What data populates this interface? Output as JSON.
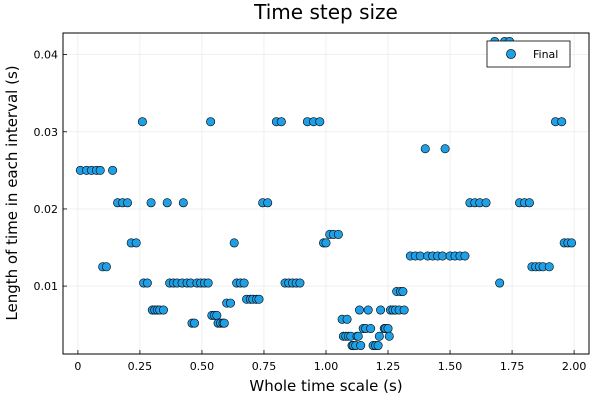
{
  "chart_data": {
    "type": "scatter",
    "title": "Time step size",
    "xlabel": "Whole time scale (s)",
    "ylabel": "Length of time in each interval (s)",
    "xlim": [
      -0.06,
      2.06
    ],
    "ylim": [
      0.0012,
      0.0428
    ],
    "x_ticks": [
      0,
      0.25,
      0.5,
      0.75,
      1.0,
      1.25,
      1.5,
      1.75,
      2.0
    ],
    "x_tick_labels": [
      "0",
      "0.25",
      "0.50",
      "0.75",
      "1.00",
      "1.25",
      "1.50",
      "1.75",
      "2.00"
    ],
    "y_ticks": [
      0.01,
      0.02,
      0.03,
      0.04
    ],
    "y_tick_labels": [
      "0.01",
      "0.02",
      "0.03",
      "0.04"
    ],
    "grid": true,
    "legend_position": "top-right",
    "marker_color": "#1f9fe6",
    "series": [
      {
        "name": "Final",
        "points": [
          [
            0.01,
            0.025
          ],
          [
            0.035,
            0.025
          ],
          [
            0.055,
            0.025
          ],
          [
            0.075,
            0.025
          ],
          [
            0.09,
            0.025
          ],
          [
            0.1,
            0.0125
          ],
          [
            0.115,
            0.0125
          ],
          [
            0.14,
            0.025
          ],
          [
            0.16,
            0.0208
          ],
          [
            0.18,
            0.0208
          ],
          [
            0.2,
            0.0208
          ],
          [
            0.215,
            0.0156
          ],
          [
            0.235,
            0.0156
          ],
          [
            0.26,
            0.0313
          ],
          [
            0.265,
            0.0104
          ],
          [
            0.28,
            0.0104
          ],
          [
            0.295,
            0.0208
          ],
          [
            0.3,
            0.0069
          ],
          [
            0.31,
            0.0069
          ],
          [
            0.32,
            0.0069
          ],
          [
            0.33,
            0.0069
          ],
          [
            0.345,
            0.0069
          ],
          [
            0.36,
            0.0208
          ],
          [
            0.37,
            0.0104
          ],
          [
            0.385,
            0.0104
          ],
          [
            0.4,
            0.0104
          ],
          [
            0.42,
            0.0104
          ],
          [
            0.425,
            0.0208
          ],
          [
            0.44,
            0.0104
          ],
          [
            0.455,
            0.0104
          ],
          [
            0.46,
            0.0052
          ],
          [
            0.47,
            0.0052
          ],
          [
            0.48,
            0.0104
          ],
          [
            0.495,
            0.0104
          ],
          [
            0.51,
            0.0104
          ],
          [
            0.525,
            0.0104
          ],
          [
            0.535,
            0.0313
          ],
          [
            0.54,
            0.0062
          ],
          [
            0.55,
            0.0062
          ],
          [
            0.56,
            0.0062
          ],
          [
            0.565,
            0.0052
          ],
          [
            0.575,
            0.0052
          ],
          [
            0.585,
            0.0052
          ],
          [
            0.59,
            0.0052
          ],
          [
            0.6,
            0.0078
          ],
          [
            0.615,
            0.0078
          ],
          [
            0.63,
            0.0156
          ],
          [
            0.64,
            0.0104
          ],
          [
            0.655,
            0.0104
          ],
          [
            0.67,
            0.0104
          ],
          [
            0.68,
            0.0083
          ],
          [
            0.695,
            0.0083
          ],
          [
            0.705,
            0.0083
          ],
          [
            0.72,
            0.0083
          ],
          [
            0.73,
            0.0083
          ],
          [
            0.745,
            0.0208
          ],
          [
            0.765,
            0.0208
          ],
          [
            0.8,
            0.0313
          ],
          [
            0.82,
            0.0313
          ],
          [
            0.835,
            0.0104
          ],
          [
            0.85,
            0.0104
          ],
          [
            0.865,
            0.0104
          ],
          [
            0.88,
            0.0104
          ],
          [
            0.895,
            0.0104
          ],
          [
            0.925,
            0.0313
          ],
          [
            0.95,
            0.0313
          ],
          [
            0.975,
            0.0313
          ],
          [
            0.99,
            0.0156
          ],
          [
            1.0,
            0.0156
          ],
          [
            1.015,
            0.0167
          ],
          [
            1.03,
            0.0167
          ],
          [
            1.05,
            0.0167
          ],
          [
            1.065,
            0.0057
          ],
          [
            1.07,
            0.0035
          ],
          [
            1.08,
            0.0035
          ],
          [
            1.085,
            0.0057
          ],
          [
            1.09,
            0.0035
          ],
          [
            1.1,
            0.0035
          ],
          [
            1.105,
            0.0023
          ],
          [
            1.11,
            0.0023
          ],
          [
            1.12,
            0.0023
          ],
          [
            1.125,
            0.0035
          ],
          [
            1.13,
            0.0035
          ],
          [
            1.135,
            0.0069
          ],
          [
            1.14,
            0.0023
          ],
          [
            1.15,
            0.0045
          ],
          [
            1.16,
            0.0045
          ],
          [
            1.17,
            0.0069
          ],
          [
            1.18,
            0.0045
          ],
          [
            1.19,
            0.0023
          ],
          [
            1.2,
            0.0023
          ],
          [
            1.21,
            0.0023
          ],
          [
            1.215,
            0.0035
          ],
          [
            1.22,
            0.0069
          ],
          [
            1.235,
            0.0045
          ],
          [
            1.24,
            0.0045
          ],
          [
            1.25,
            0.0045
          ],
          [
            1.255,
            0.0035
          ],
          [
            1.26,
            0.0069
          ],
          [
            1.27,
            0.0069
          ],
          [
            1.28,
            0.0069
          ],
          [
            1.285,
            0.0093
          ],
          [
            1.3,
            0.0093
          ],
          [
            1.31,
            0.0093
          ],
          [
            1.295,
            0.0069
          ],
          [
            1.315,
            0.0069
          ],
          [
            1.34,
            0.0139
          ],
          [
            1.36,
            0.0139
          ],
          [
            1.38,
            0.0139
          ],
          [
            1.4,
            0.0278
          ],
          [
            1.41,
            0.0139
          ],
          [
            1.43,
            0.0139
          ],
          [
            1.45,
            0.0139
          ],
          [
            1.47,
            0.0139
          ],
          [
            1.48,
            0.0278
          ],
          [
            1.5,
            0.0139
          ],
          [
            1.52,
            0.0139
          ],
          [
            1.54,
            0.0139
          ],
          [
            1.56,
            0.0139
          ],
          [
            1.58,
            0.0208
          ],
          [
            1.6,
            0.0208
          ],
          [
            1.62,
            0.0208
          ],
          [
            1.645,
            0.0208
          ],
          [
            1.68,
            0.0417
          ],
          [
            1.7,
            0.0104
          ],
          [
            1.72,
            0.0417
          ],
          [
            1.74,
            0.0417
          ],
          [
            1.78,
            0.0208
          ],
          [
            1.8,
            0.0208
          ],
          [
            1.82,
            0.0208
          ],
          [
            1.83,
            0.0125
          ],
          [
            1.845,
            0.0125
          ],
          [
            1.86,
            0.0125
          ],
          [
            1.875,
            0.0125
          ],
          [
            1.9,
            0.0125
          ],
          [
            1.925,
            0.0313
          ],
          [
            1.95,
            0.0313
          ],
          [
            1.96,
            0.0156
          ],
          [
            1.975,
            0.0156
          ],
          [
            1.99,
            0.0156
          ]
        ]
      }
    ]
  }
}
